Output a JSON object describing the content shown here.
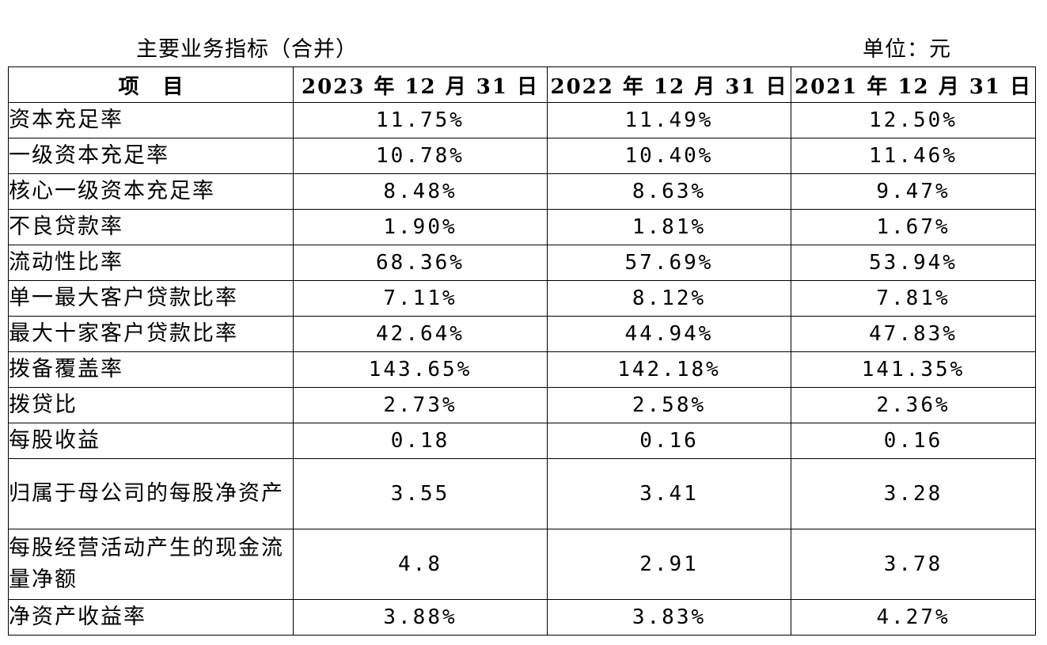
{
  "caption": {
    "title": "主要业务指标（合并）",
    "unit": "单位：元"
  },
  "table": {
    "headers": [
      "项目",
      "2023 年 12 月 31 日",
      "2022 年 12 月 31 日",
      "2021 年 12 月 31 日"
    ],
    "rows": [
      {
        "label": "资本充足率",
        "values": [
          "11.75%",
          "11.49%",
          "12.50%"
        ]
      },
      {
        "label": "一级资本充足率",
        "values": [
          "10.78%",
          "10.40%",
          "11.46%"
        ]
      },
      {
        "label": "核心一级资本充足率",
        "values": [
          "8.48%",
          "8.63%",
          "9.47%"
        ]
      },
      {
        "label": "不良贷款率",
        "values": [
          "1.90%",
          "1.81%",
          "1.67%"
        ]
      },
      {
        "label": "流动性比率",
        "values": [
          "68.36%",
          "57.69%",
          "53.94%"
        ]
      },
      {
        "label": "单一最大客户贷款比率",
        "values": [
          "7.11%",
          "8.12%",
          "7.81%"
        ]
      },
      {
        "label": "最大十家客户贷款比率",
        "values": [
          "42.64%",
          "44.94%",
          "47.83%"
        ]
      },
      {
        "label": "拨备覆盖率",
        "values": [
          "143.65%",
          "142.18%",
          "141.35%"
        ]
      },
      {
        "label": "拨贷比",
        "values": [
          "2.73%",
          "2.58%",
          "2.36%"
        ]
      },
      {
        "label": "每股收益",
        "values": [
          "0.18",
          "0.16",
          "0.16"
        ]
      },
      {
        "label": "归属于母公司的每股净资产",
        "values": [
          "3.55",
          "3.41",
          "3.28"
        ]
      },
      {
        "label": "每股经营活动产生的现金流量净额",
        "values": [
          "4.8",
          "2.91",
          "3.78"
        ]
      },
      {
        "label": "净资产收益率",
        "values": [
          "3.88%",
          "3.83%",
          "4.27%"
        ]
      }
    ]
  }
}
